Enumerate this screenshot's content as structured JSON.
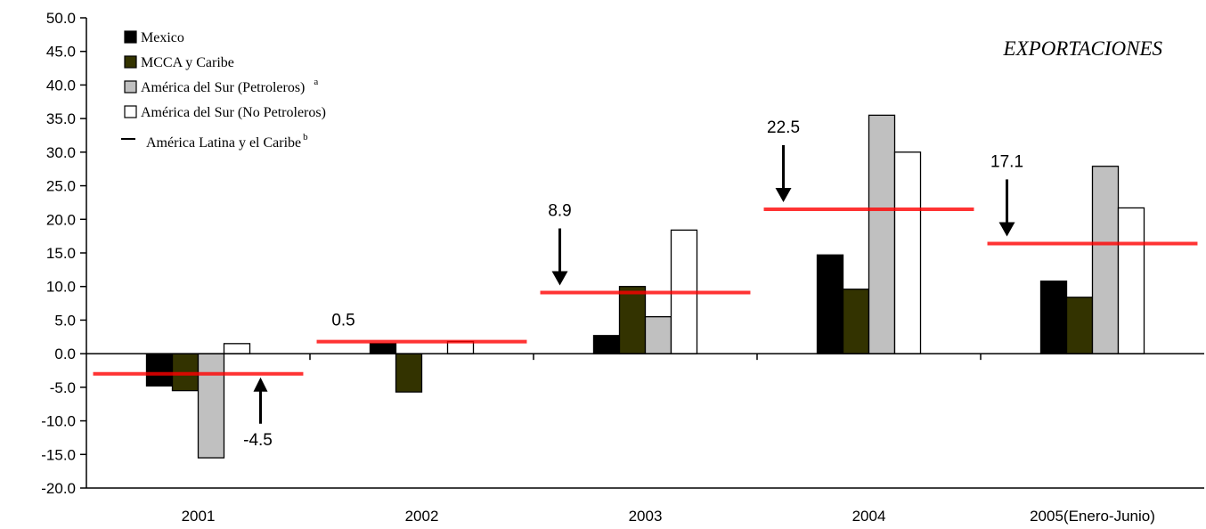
{
  "chart_data": {
    "type": "bar",
    "title": "EXPORTACIONES",
    "categories": [
      "2001",
      "2002",
      "2003",
      "2004",
      "2005(Enero-Junio)"
    ],
    "series": [
      {
        "name": "Mexico",
        "color": "#000000",
        "values": [
          -4.8,
          1.5,
          2.7,
          14.7,
          10.8
        ]
      },
      {
        "name": "MCCA y Caribe",
        "color": "#333300",
        "values": [
          -5.5,
          -5.7,
          10.0,
          9.6,
          8.4
        ]
      },
      {
        "name": "América del Sur (Petroleros)",
        "legend_mark": "a",
        "color": "#c0c0c0",
        "values": [
          -15.5,
          0,
          5.5,
          35.5,
          27.9
        ]
      },
      {
        "name": "América del Sur (No Petroleros)",
        "color": "#ffffff",
        "values": [
          1.5,
          1.8,
          18.4,
          30.0,
          21.7
        ]
      }
    ],
    "line_series": {
      "name": "América Latina y el Caribe",
      "legend_mark": "b",
      "color": "#ff0000",
      "values": [
        -3.0,
        1.8,
        9.1,
        21.5,
        16.4
      ]
    },
    "annotations": [
      {
        "text": "-4.5",
        "category": "2001",
        "arrow": "up"
      },
      {
        "text": "0.5",
        "category": "2002",
        "arrow": "none"
      },
      {
        "text": "8.9",
        "category": "2003",
        "arrow": "down"
      },
      {
        "text": "22.5",
        "category": "2004",
        "arrow": "down"
      },
      {
        "text": "17.1",
        "category": "2005(Enero-Junio)",
        "arrow": "down"
      }
    ],
    "ylim": [
      -20,
      50
    ],
    "yticks": [
      "50.0",
      "45.0",
      "40.0",
      "35.0",
      "30.0",
      "25.0",
      "20.0",
      "15.0",
      "10.0",
      "5.0",
      "0.0",
      "-5.0",
      "-10.0",
      "-15.0",
      "-20.0"
    ],
    "grid": false,
    "legend_position": "top-left",
    "xlabel": "",
    "ylabel": ""
  }
}
